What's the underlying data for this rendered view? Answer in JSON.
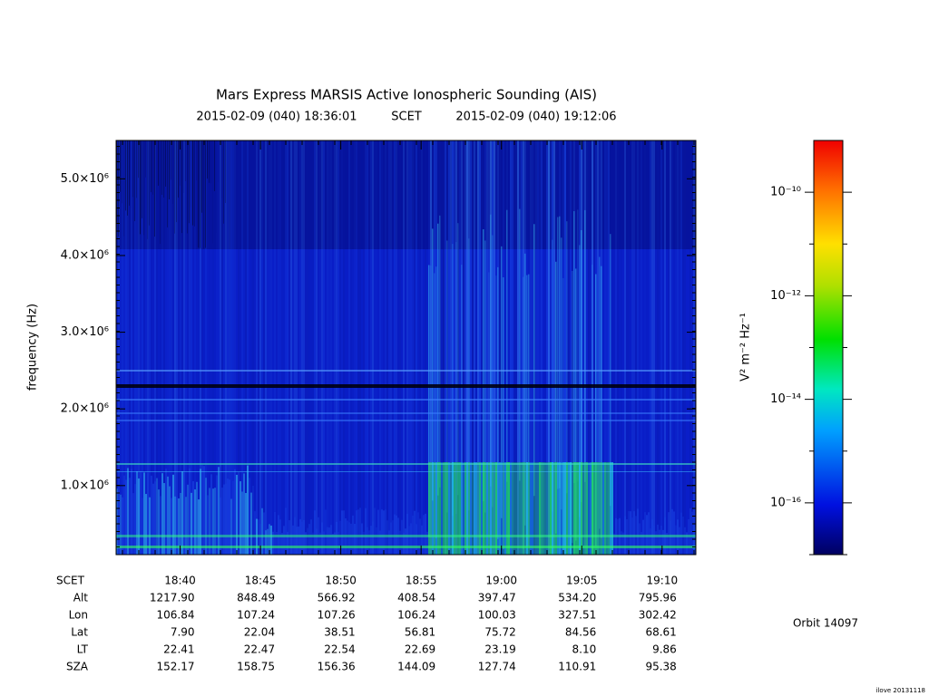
{
  "chart_data": {
    "type": "spectrogram",
    "title": "Mars Express MARSIS Active Ionospheric Sounding (AIS)",
    "start": "2015-02-09 (040) 18:36:01",
    "time_label": "SCET",
    "end": "2015-02-09 (040) 19:12:06",
    "ylabel": "frequency (Hz)",
    "ylim": [
      100000,
      5500000
    ],
    "yticks": [
      {
        "value": 1000000,
        "label": "1.0×10⁶"
      },
      {
        "value": 2000000,
        "label": "2.0×10⁶"
      },
      {
        "value": 3000000,
        "label": "3.0×10⁶"
      },
      {
        "value": 4000000,
        "label": "4.0×10⁶"
      },
      {
        "value": 5000000,
        "label": "5.0×10⁶"
      }
    ],
    "xticks": [
      "18:40",
      "18:45",
      "18:50",
      "18:55",
      "19:00",
      "19:05",
      "19:10"
    ],
    "colorbar": {
      "label": "V² m⁻² Hz⁻¹",
      "scale": "log",
      "lim": [
        1e-17,
        1e-09
      ],
      "ticks": [
        {
          "value": 1e-10,
          "label": "10⁻¹⁰"
        },
        {
          "value": 1e-12,
          "label": "10⁻¹²"
        },
        {
          "value": 1e-14,
          "label": "10⁻¹⁴"
        },
        {
          "value": 1e-16,
          "label": "10⁻¹⁶"
        }
      ]
    }
  },
  "ephemeris": {
    "time_label": "SCET",
    "rows": [
      {
        "label": "Alt",
        "values": [
          "1217.90",
          "848.49",
          "566.92",
          "408.54",
          "397.47",
          "534.20",
          "795.96"
        ]
      },
      {
        "label": "Lon",
        "values": [
          "106.84",
          "107.24",
          "107.26",
          "106.24",
          "100.03",
          "327.51",
          "302.42"
        ]
      },
      {
        "label": "Lat",
        "values": [
          "7.90",
          "22.04",
          "38.51",
          "56.81",
          "75.72",
          "84.56",
          "68.61"
        ]
      },
      {
        "label": "LT",
        "values": [
          "22.41",
          "22.47",
          "22.54",
          "22.69",
          "23.19",
          "8.10",
          "9.86"
        ]
      },
      {
        "label": "SZA",
        "values": [
          "152.17",
          "158.75",
          "156.36",
          "144.09",
          "127.74",
          "110.91",
          "95.38"
        ]
      }
    ]
  },
  "orbit": "Orbit 14097",
  "footer": "ilove 20131118"
}
